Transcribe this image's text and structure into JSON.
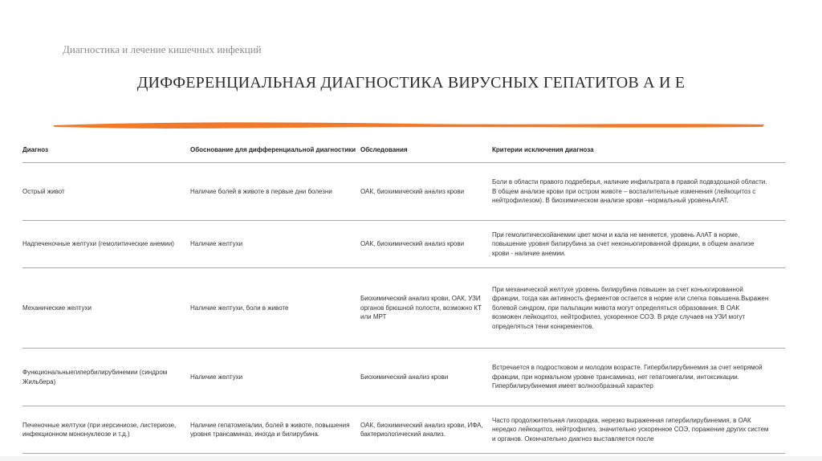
{
  "subtitle": "Диагностика и лечение кишечных инфекций",
  "title": "ДИФФЕРЕНЦИАЛЬНАЯ ДИАГНОСТИКА ВИРУСНЫХ ГЕПАТИТОВ А И Е",
  "accent_color": "#f07a2a",
  "table": {
    "headers": [
      "Диагноз",
      "Обоснование для дифференциальной диагностики",
      "Обследования",
      "Критерии исключения диагноза"
    ],
    "rows": [
      [
        "Острый живот",
        "Наличие болей в животе в первые дни болезни",
        "ОАК, биохимический анализ крови",
        "Боли в области правого подреберья, наличие инфильтрата в правой подвздошной области. В общем анализе крови при остром животе – воспалительные изменения (лейкоцитоз с нейтрофилезом). В биохимическом анализе крови –нормальный уровеньАлАТ."
      ],
      [
        "Надпеченочные желтухи (гемолитические анемии)",
        "Наличие желтухи",
        "ОАК, биохимический анализ крови",
        "При гемолитическойанемии цвет мочи и кала не меняется, уровень АлАТ в норме, повышение уровня билирубина за счет неконьюгированной фракции, в общем анализе крови - наличие анемии."
      ],
      [
        "Механические желтухи",
        "Наличие желтухи, боли в животе",
        "Биохимический анализ крови, ОАК, УЗИ органов брюшной полости, возможно КТ или МРТ",
        "При механической желтухе уровень билирубина повышен за счет коньюгированной фракции, тогда как активность ферментов остается в норме или слегка повышена.Выражен болевой синдром, при пальпации живота могут определяться образования. В ОАК возможен лейкоцитоз, нейтрофилез, ускоренное СОЭ. В ряде случаев на УЗИ могут определяться тени конкрементов."
      ],
      [
        "Функциональныегипербилирубинемии (синдром Жильбера)",
        "Наличие желтухи",
        "Биохимический анализ крови",
        "Встречается в подростковом и молодом возрасте. Гипербилирубинемия за счет непрямой фракции, при нормальном уровне трансаминаз, нет гепатомегалии, интоксикации. Гипербилирубинемия имеет волнообразный характер"
      ],
      [
        "Печеночные желтухи (при иерсиниозе, листериозе, инфекционном мононуклеозе и т.д.)",
        "Наличие гепатомегалии, болей в животе, повышения уровня трансаминаз, иногда и билирубина.",
        "ОАК, биохимический анализ крови, ИФА, бактериологический анализ.",
        "Часто продолжительная лихорадка, нерезко выраженная гипербилирубинемия, в ОАК нередко лейкоцитоз, нейтрофилез, значительно ускоренное СОЭ, поражение других систем и органов. Окончательно диагноз выставляется после"
      ]
    ]
  }
}
